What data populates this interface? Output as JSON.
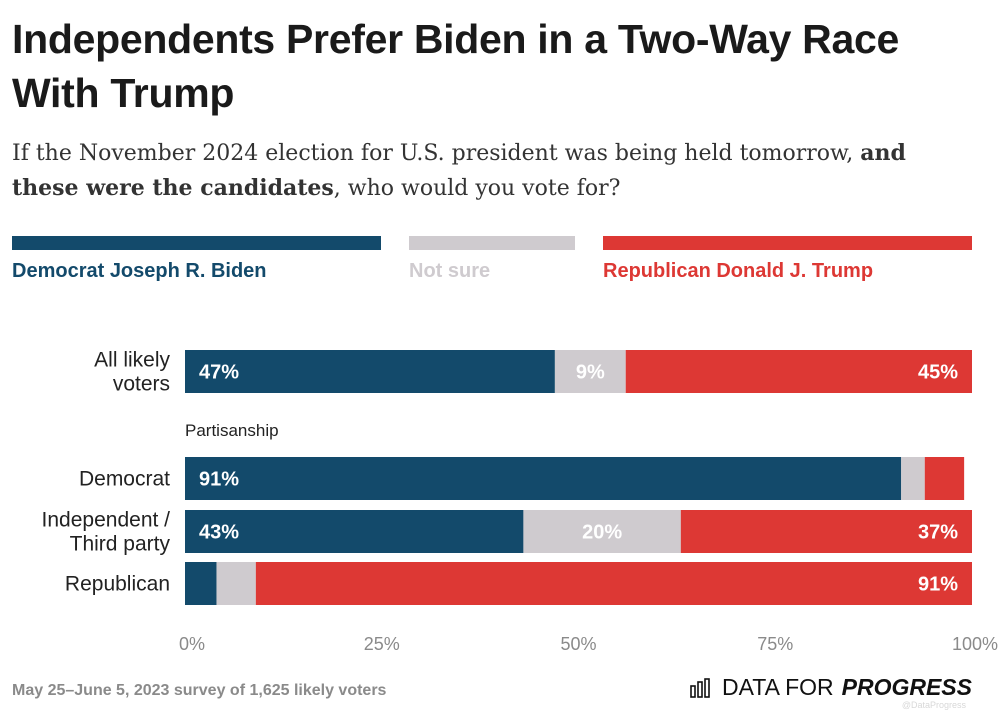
{
  "title": "Independents Prefer Biden in a Two-Way Race With Trump",
  "subtitle": {
    "part1": "If the November 2024 election for U.S. president was being held tomorrow, ",
    "bold": "and these were the candidates",
    "part2": ", who would you vote for?"
  },
  "legend": [
    {
      "name": "Democrat Joseph R. Biden",
      "color": "#134a6b"
    },
    {
      "name": "Not sure",
      "color": "#cfcbcf"
    },
    {
      "name": "Republican Donald J. Trump",
      "color": "#dd3834"
    }
  ],
  "chart_data": {
    "type": "bar",
    "orientation": "horizontal",
    "stacked": true,
    "categories": [
      "All likely voters",
      "Democrat",
      "Independent / Third party",
      "Republican"
    ],
    "group_label": "Partisanship",
    "series": [
      {
        "name": "Democrat Joseph R. Biden",
        "values": [
          47,
          91,
          43,
          4
        ],
        "labels": [
          "47%",
          "91%",
          "43%",
          ""
        ]
      },
      {
        "name": "Not sure",
        "values": [
          9,
          3,
          20,
          5
        ],
        "labels": [
          "9%",
          "",
          "20%",
          ""
        ]
      },
      {
        "name": "Republican Donald J. Trump",
        "values": [
          45,
          5,
          37,
          91
        ],
        "labels": [
          "45%",
          "",
          "37%",
          "91%"
        ]
      }
    ],
    "x_ticks": [
      "0%",
      "25%",
      "50%",
      "75%",
      "100%"
    ],
    "xlim": [
      0,
      100
    ]
  },
  "footer": {
    "note": "May 25–June 5, 2023 survey of 1,625 likely voters",
    "brand_regular": "DATA FOR",
    "brand_bold": "PROGRESS",
    "watermark": "@DataProgress"
  }
}
